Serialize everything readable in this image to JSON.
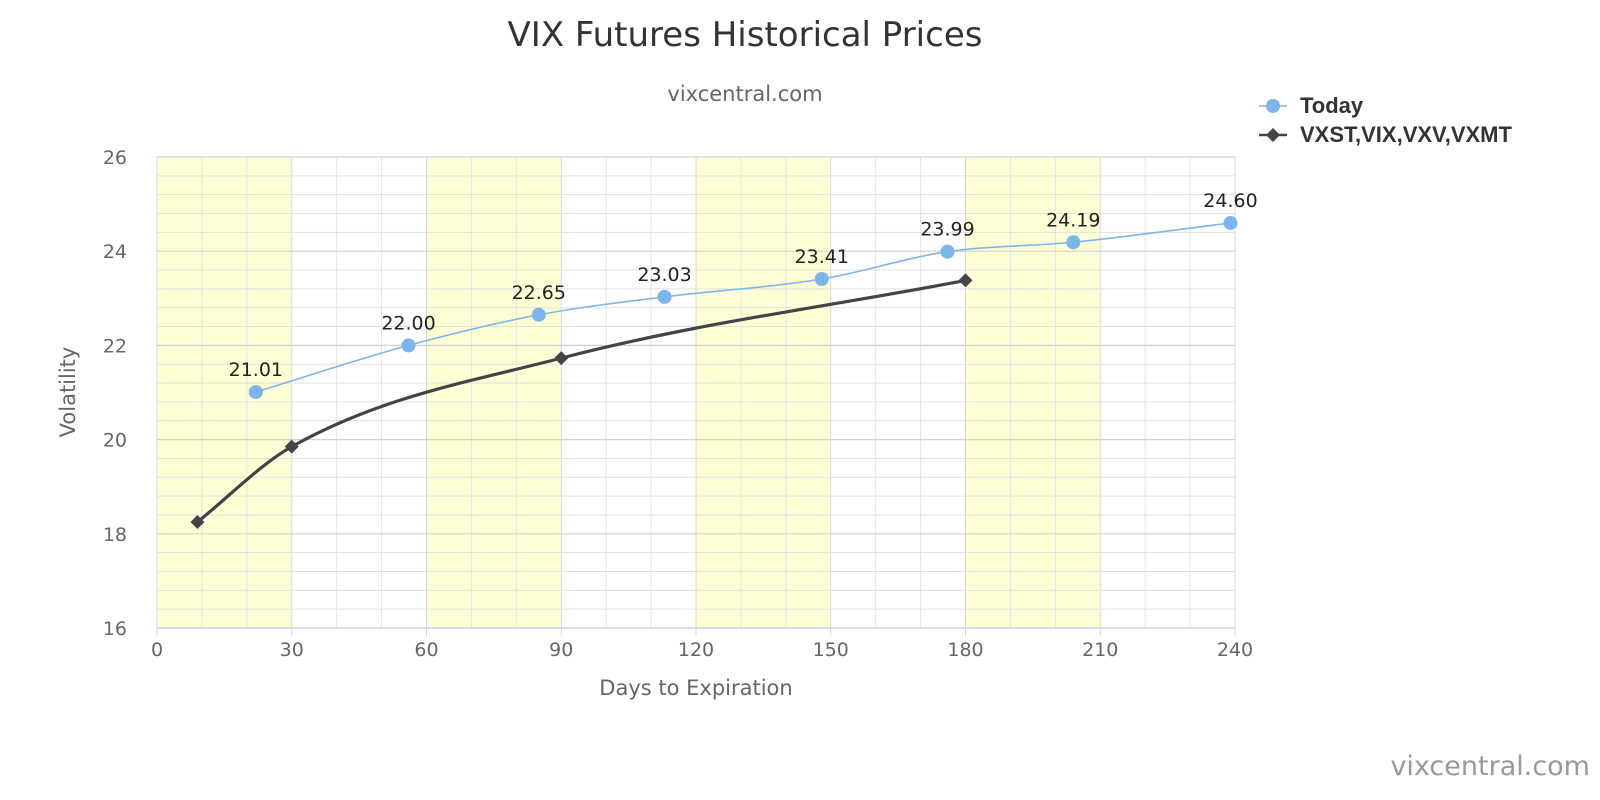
{
  "chart_data": {
    "type": "line",
    "title": "VIX Futures Historical Prices",
    "subtitle": "vixcentral.com",
    "xlabel": "Days to Expiration",
    "ylabel": "Volatility",
    "xlim": [
      0,
      240
    ],
    "ylim": [
      16,
      26
    ],
    "x_ticks": [
      "0",
      "30",
      "60",
      "90",
      "120",
      "150",
      "180",
      "210",
      "240"
    ],
    "y_ticks": [
      "16",
      "18",
      "20",
      "22",
      "24",
      "26"
    ],
    "grid": true,
    "legend_position": "top-right",
    "shaded_bands": [
      [
        0,
        30
      ],
      [
        60,
        90
      ],
      [
        120,
        150
      ],
      [
        180,
        210
      ]
    ],
    "shade_color": "#ffffd5",
    "series": [
      {
        "name": "Today",
        "color": "#7cb5ec",
        "marker": "circle",
        "show_labels": true,
        "points": [
          {
            "x": 22,
            "y": 21.01,
            "label": "21.01"
          },
          {
            "x": 56,
            "y": 22.0,
            "label": "22.00"
          },
          {
            "x": 85,
            "y": 22.65,
            "label": "22.65"
          },
          {
            "x": 113,
            "y": 23.03,
            "label": "23.03"
          },
          {
            "x": 148,
            "y": 23.41,
            "label": "23.41"
          },
          {
            "x": 176,
            "y": 23.99,
            "label": "23.99"
          },
          {
            "x": 204,
            "y": 24.19,
            "label": "24.19"
          },
          {
            "x": 239,
            "y": 24.6,
            "label": "24.60"
          }
        ]
      },
      {
        "name": "VXST,VIX,VXV,VXMT",
        "color": "#434348",
        "marker": "diamond",
        "show_labels": false,
        "points": [
          {
            "x": 9,
            "y": 18.25
          },
          {
            "x": 30,
            "y": 19.85
          },
          {
            "x": 90,
            "y": 21.73
          },
          {
            "x": 180,
            "y": 23.38
          }
        ]
      }
    ]
  },
  "credit": "vixcentral.com"
}
